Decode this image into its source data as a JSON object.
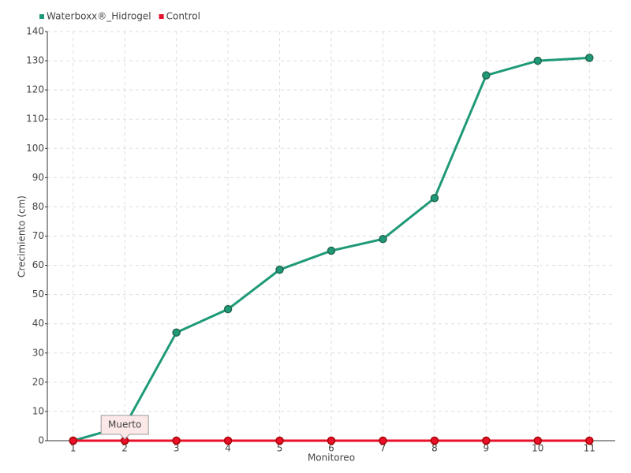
{
  "chart_data": {
    "type": "line",
    "x_label": "Monitoreo",
    "y_label": "Crecimiento (cm)",
    "categories": [
      "1",
      "2",
      "3",
      "4",
      "5",
      "6",
      "7",
      "8",
      "9",
      "10",
      "11"
    ],
    "series": [
      {
        "name": "Waterboxx®_Hidrogel",
        "color": "#1f9a78",
        "values": [
          0,
          5,
          37,
          45,
          58.5,
          65,
          69,
          83,
          125,
          130,
          131
        ]
      },
      {
        "name": "Control",
        "color": "#e8102a",
        "values": [
          0,
          0,
          0,
          0,
          0,
          0,
          0,
          0,
          0,
          0,
          0
        ]
      }
    ],
    "ylim": [
      0,
      140
    ],
    "yticks": [
      0,
      10,
      20,
      30,
      40,
      50,
      60,
      70,
      80,
      90,
      100,
      110,
      120,
      130,
      140
    ],
    "grid": true,
    "legend": "top-left",
    "annotations": [
      "Muerto"
    ]
  }
}
